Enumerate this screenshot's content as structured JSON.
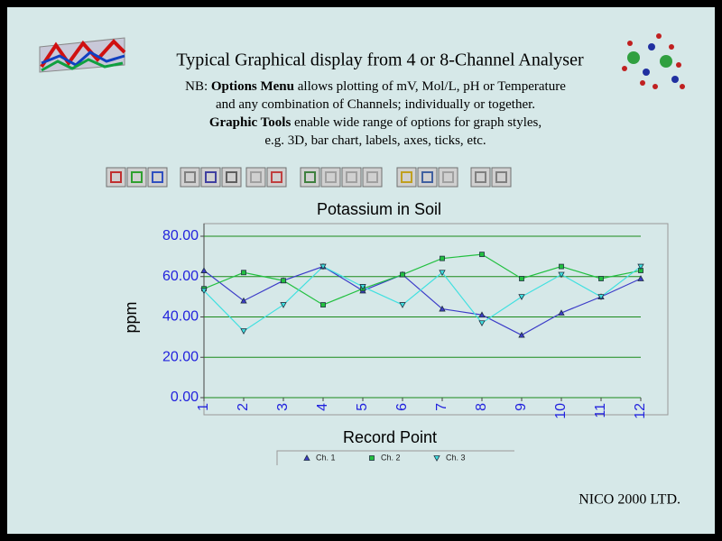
{
  "header": {
    "title": "Typical Graphical display from 4 or 8-Channel Analyser",
    "note": [
      [
        {
          "text": "NB: ",
          "bold": false
        },
        {
          "text": "Options Menu",
          "bold": true
        },
        {
          "text": " allows plotting of mV, Mol/L, pH or Temperature",
          "bold": false
        }
      ],
      [
        {
          "text": "and any combination of Channels; individually or together.",
          "bold": false
        }
      ],
      [
        {
          "text": "Graphic Tools",
          "bold": true
        },
        {
          "text": " enable wide range of options for graph styles,",
          "bold": false
        }
      ],
      [
        {
          "text": "e.g. 3D, bar chart, labels, axes, ticks, etc.",
          "bold": false
        }
      ]
    ]
  },
  "chart_data": {
    "type": "line",
    "title": "Potassium in Soil",
    "y_label": "ppm",
    "x_label": "Record Point",
    "categories": [
      "1",
      "2",
      "3",
      "4",
      "5",
      "6",
      "7",
      "8",
      "9",
      "10",
      "11",
      "12"
    ],
    "series": [
      {
        "name": "Ch. 1",
        "color": "#3c3cc8",
        "marker": "triangle-up",
        "values": [
          63,
          48,
          58,
          65,
          53,
          61,
          44,
          41,
          31,
          42,
          50,
          59
        ]
      },
      {
        "name": "Ch. 2",
        "color": "#22c040",
        "marker": "square",
        "values": [
          54,
          62,
          58,
          46,
          54,
          61,
          69,
          71,
          59,
          65,
          59,
          63
        ]
      },
      {
        "name": "Ch. 3",
        "color": "#40e0e0",
        "marker": "triangle-down",
        "values": [
          53,
          33,
          46,
          65,
          55,
          46,
          62,
          37,
          50,
          61,
          50,
          65
        ]
      }
    ],
    "ylim": [
      0,
      80
    ],
    "yticks": [
      {
        "value": 0,
        "label": "0.00"
      },
      {
        "value": 20,
        "label": "20.00"
      },
      {
        "value": 40,
        "label": "40.00"
      },
      {
        "value": 60,
        "label": "60.00"
      },
      {
        "value": 80,
        "label": "80.00"
      }
    ],
    "grid": true,
    "grid_color": "#1a8a1a",
    "tick_label_color": "#2222dd"
  },
  "footer": {
    "company": "NICO 2000 LTD."
  }
}
